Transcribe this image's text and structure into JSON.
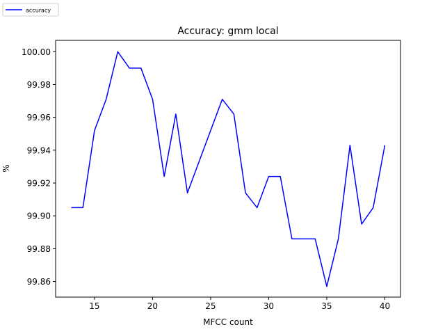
{
  "chart_data": {
    "type": "line",
    "title": "Accuracy: gmm local",
    "xlabel": "MFCC count",
    "ylabel": "%",
    "xlim": [
      11.65,
      41.35
    ],
    "ylim": [
      99.8505,
      100.0069
    ],
    "xticks": [
      15,
      20,
      25,
      30,
      35,
      40
    ],
    "xtick_labels": [
      "15",
      "20",
      "25",
      "30",
      "35",
      "40"
    ],
    "yticks": [
      99.86,
      99.88,
      99.9,
      99.92,
      99.94,
      99.96,
      99.98,
      100.0
    ],
    "ytick_labels": [
      "99.86",
      "99.88",
      "99.90",
      "99.92",
      "99.94",
      "99.96",
      "99.98",
      "100.00"
    ],
    "grid": false,
    "legend_position": "top-left outside",
    "series": [
      {
        "name": "accuracy",
        "color": "#0000ff",
        "x": [
          13,
          14,
          15,
          16,
          17,
          18,
          19,
          20,
          21,
          22,
          23,
          24,
          25,
          26,
          27,
          28,
          29,
          30,
          31,
          32,
          33,
          34,
          35,
          36,
          37,
          38,
          39,
          40
        ],
        "y": [
          99.905,
          99.905,
          99.952,
          99.971,
          100.0,
          99.99,
          99.99,
          99.971,
          99.924,
          99.962,
          99.914,
          99.933,
          99.952,
          99.971,
          99.962,
          99.914,
          99.905,
          99.924,
          99.924,
          99.886,
          99.886,
          99.886,
          99.857,
          99.886,
          99.943,
          99.895,
          99.905,
          99.943
        ]
      }
    ]
  }
}
